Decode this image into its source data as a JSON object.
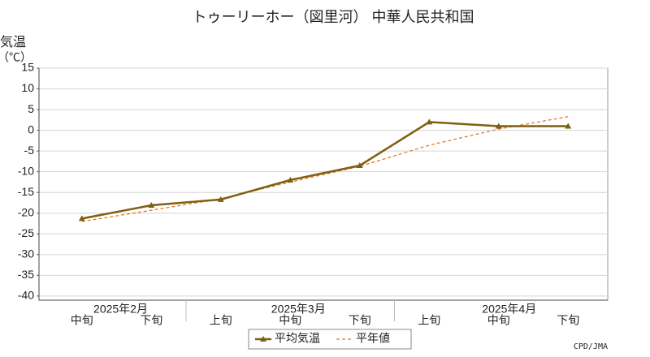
{
  "chart_data": {
    "type": "line",
    "title": "トゥーリーホー（図里河） 中華人民共和国",
    "ylabel": "気温",
    "ylabel_unit": "（℃）",
    "categories": [
      "中旬",
      "下旬",
      "上旬",
      "中旬",
      "下旬",
      "上旬",
      "中旬",
      "下旬"
    ],
    "x_groups": [
      {
        "label": "2025年2月",
        "span": 2
      },
      {
        "label": "2025年3月",
        "span": 3
      },
      {
        "label": "2025年4月",
        "span": 3
      }
    ],
    "series": [
      {
        "name": "平均気温",
        "color": "#7f5f10",
        "style": "solid",
        "values": [
          -21.3,
          -18.1,
          -16.7,
          -12.0,
          -8.5,
          2.0,
          1.0,
          1.0
        ]
      },
      {
        "name": "平年値",
        "color": "#e07a2a",
        "style": "dashed",
        "values": [
          -22.0,
          -19.3,
          -16.5,
          -12.5,
          -8.7,
          -3.6,
          0.3,
          3.3
        ]
      }
    ],
    "ylim": [
      -41,
      15
    ],
    "yticks": [
      15,
      10,
      5,
      0,
      -5,
      -10,
      -15,
      -20,
      -25,
      -30,
      -35,
      -40
    ],
    "grid": true,
    "legend": "bottom",
    "source": "CPD/JMA"
  }
}
